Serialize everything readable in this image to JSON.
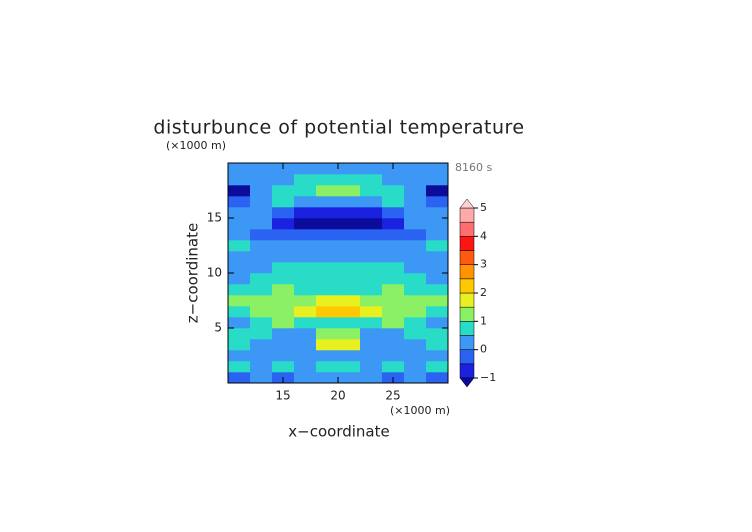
{
  "chart_data": {
    "type": "contour",
    "title": "disturbunce of potential temperature",
    "x_label": "x−coordinate",
    "y_label": "z−coordinate",
    "x_unit": "(×1000 m)",
    "y_unit": "(×1000 m)",
    "time_label": "8160 s",
    "xlim": [
      10,
      30
    ],
    "ylim": [
      0,
      20
    ],
    "xticks": [
      15,
      20,
      25
    ],
    "yticks": [
      5,
      10,
      15
    ],
    "x": [
      11,
      13,
      15,
      17,
      19,
      21,
      23,
      25,
      27,
      29
    ],
    "y": [
      0.5,
      1.5,
      2.5,
      3.5,
      4.5,
      5.5,
      6.5,
      7.5,
      8.5,
      9.5,
      10.5,
      11.5,
      12.5,
      13.5,
      14.5,
      15.5,
      16.5,
      17.5,
      18.5,
      19.5
    ],
    "z": [
      [
        -0.3,
        0.3,
        -0.3,
        0.2,
        0.3,
        0.3,
        0.2,
        -0.3,
        0.3,
        -0.3
      ],
      [
        0.6,
        0.3,
        0.6,
        0.3,
        0.6,
        0.6,
        0.3,
        0.6,
        0.3,
        0.6
      ],
      [
        0.3,
        0.2,
        0.3,
        0.4,
        0.2,
        0.2,
        0.4,
        0.3,
        0.2,
        0.3
      ],
      [
        0.6,
        0.3,
        0.2,
        0.3,
        1.8,
        1.8,
        0.3,
        0.2,
        0.3,
        0.6
      ],
      [
        0.7,
        0.6,
        0.3,
        0.4,
        1.2,
        1.2,
        0.4,
        0.3,
        0.6,
        0.7
      ],
      [
        0.3,
        0.7,
        1.2,
        0.7,
        0.6,
        0.6,
        0.7,
        1.2,
        0.7,
        0.3
      ],
      [
        0.8,
        1.2,
        1.4,
        1.6,
        2.2,
        2.2,
        1.6,
        1.4,
        1.2,
        0.8
      ],
      [
        1.2,
        1.3,
        1.2,
        1.3,
        1.6,
        1.6,
        1.3,
        1.2,
        1.3,
        1.2
      ],
      [
        0.7,
        0.8,
        1.1,
        0.8,
        0.7,
        0.7,
        0.8,
        1.1,
        0.8,
        0.7
      ],
      [
        0.3,
        0.6,
        0.7,
        0.7,
        0.7,
        0.7,
        0.7,
        0.7,
        0.6,
        0.3
      ],
      [
        0.2,
        0.3,
        0.6,
        0.7,
        0.6,
        0.6,
        0.7,
        0.6,
        0.3,
        0.2
      ],
      [
        0.2,
        0.2,
        0.3,
        0.4,
        0.3,
        0.3,
        0.4,
        0.3,
        0.2,
        0.2
      ],
      [
        0.6,
        0.2,
        0.2,
        0.3,
        0.3,
        0.3,
        0.3,
        0.2,
        0.2,
        0.6
      ],
      [
        0.3,
        -0.2,
        -0.2,
        -0.3,
        -0.3,
        -0.3,
        -0.3,
        -0.2,
        -0.2,
        0.3
      ],
      [
        0.2,
        0.2,
        -0.6,
        -1.1,
        -1.2,
        -1.2,
        -1.1,
        -0.6,
        0.2,
        0.2
      ],
      [
        0.3,
        0.2,
        -0.3,
        -0.7,
        -0.8,
        -0.8,
        -0.7,
        -0.3,
        0.2,
        0.3
      ],
      [
        -0.2,
        0.2,
        0.6,
        0.4,
        0.4,
        0.4,
        0.4,
        0.6,
        0.2,
        -0.2
      ],
      [
        -1.1,
        0.3,
        0.6,
        0.7,
        1.2,
        1.2,
        0.7,
        0.6,
        0.3,
        -1.1
      ],
      [
        0.2,
        0.3,
        0.2,
        0.6,
        0.6,
        0.6,
        0.6,
        0.2,
        0.3,
        0.2
      ],
      [
        0.2,
        0.2,
        0.2,
        0.2,
        0.3,
        0.3,
        0.2,
        0.2,
        0.2,
        0.2
      ]
    ],
    "levels": [
      -1,
      -0.5,
      0,
      0.5,
      1,
      1.5,
      2,
      2.5,
      3,
      3.5,
      4,
      4.5,
      5
    ],
    "colors": [
      "#0c0c9c",
      "#1a22e0",
      "#2a62f2",
      "#3c98f4",
      "#28dcc8",
      "#8cf064",
      "#e8f020",
      "#ffc800",
      "#ff9400",
      "#ff5a10",
      "#ff1414",
      "#ff6e6e",
      "#ffaaaa",
      "#ffd0d0"
    ],
    "colorbar_ticks": [
      {
        "value": -1,
        "label": "−1"
      },
      0,
      1,
      2,
      3,
      4,
      5
    ]
  }
}
